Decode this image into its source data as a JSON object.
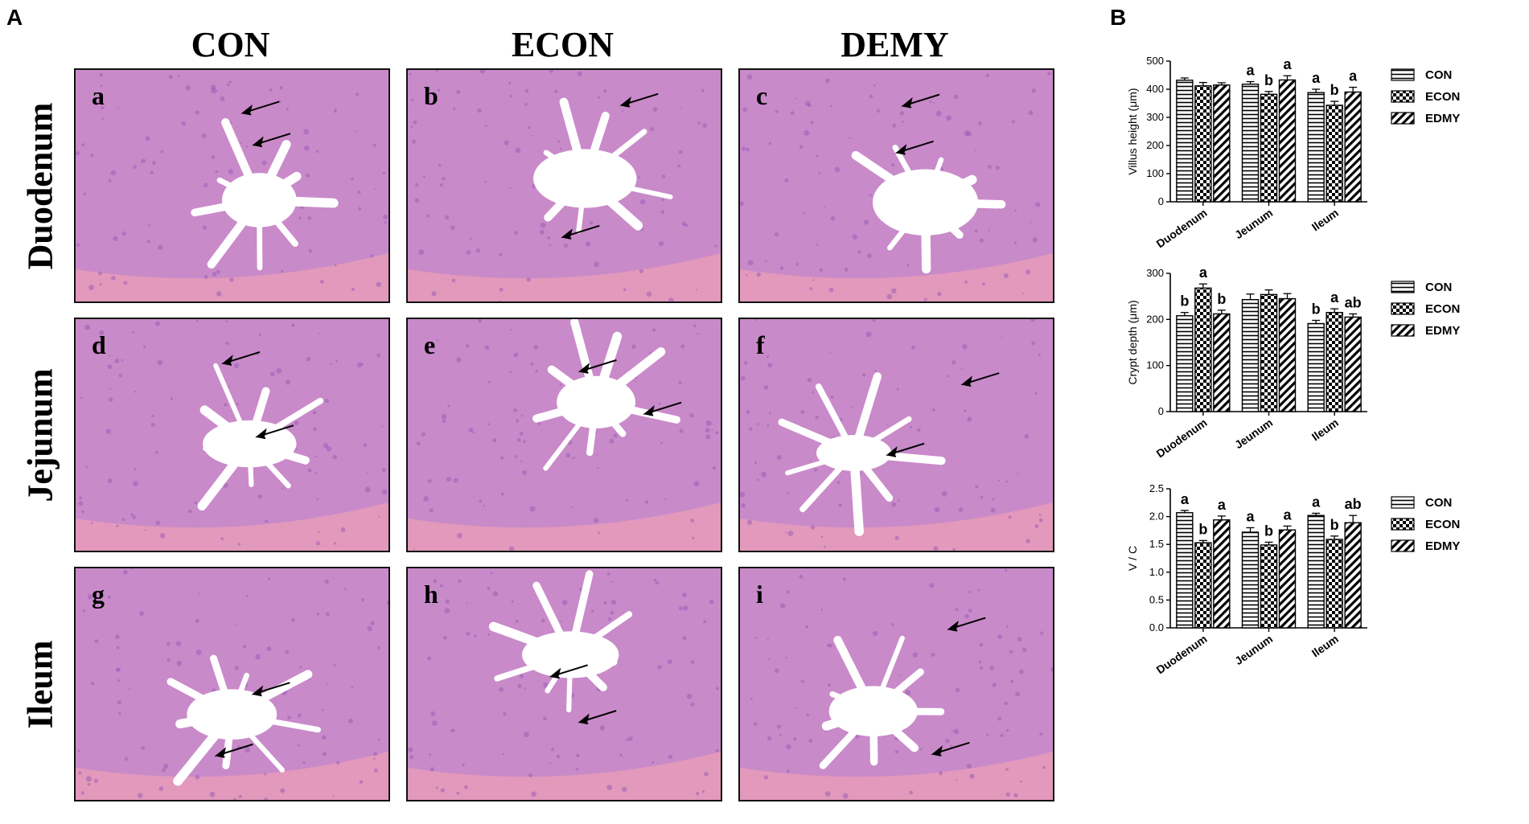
{
  "panels": {
    "a_label": "A",
    "b_label": "B"
  },
  "micrographs": {
    "columns": [
      "CON",
      "ECON",
      "DEMY"
    ],
    "rows": [
      "Duodenum",
      "Jejunum",
      "Ileum"
    ],
    "sublabels": [
      "a",
      "b",
      "c",
      "d",
      "e",
      "f",
      "g",
      "h",
      "i"
    ],
    "colors": {
      "tissue": "#c98ac9",
      "tissue_dark": "#9a5fb7",
      "muscle": "#e89cb8",
      "lumen": "#ffffff",
      "border": "#111111"
    }
  },
  "chart_data": [
    {
      "type": "bar",
      "categories": [
        "Duodenum",
        "Jeunum",
        "Ileum"
      ],
      "ylabel": "Villus height (μm)",
      "xlabel": "",
      "ylim": [
        0,
        500
      ],
      "yticks": [
        "0",
        "100",
        "200",
        "300",
        "400",
        "500"
      ],
      "series": [
        {
          "name": "CON",
          "values": [
            432,
            418,
            388
          ],
          "errors": [
            8,
            9,
            12
          ],
          "letters": [
            "",
            "a",
            "a"
          ]
        },
        {
          "name": "ECON",
          "values": [
            412,
            382,
            343
          ],
          "errors": [
            12,
            10,
            14
          ],
          "letters": [
            "",
            "b",
            "b"
          ]
        },
        {
          "name": "EDMY",
          "values": [
            415,
            433,
            390
          ],
          "errors": [
            8,
            15,
            17
          ],
          "letters": [
            "",
            "a",
            "a"
          ]
        }
      ],
      "legend_position": "right"
    },
    {
      "type": "bar",
      "categories": [
        "Duodenum",
        "Jeunum",
        "Ileum"
      ],
      "ylabel": "Crypt depth (μm)",
      "xlabel": "",
      "ylim": [
        0,
        300
      ],
      "yticks": [
        "0",
        "100",
        "200",
        "300"
      ],
      "series": [
        {
          "name": "CON",
          "values": [
            208,
            243,
            191
          ],
          "errors": [
            7,
            12,
            7
          ],
          "letters": [
            "b",
            "",
            "b"
          ]
        },
        {
          "name": "ECON",
          "values": [
            268,
            254,
            215
          ],
          "errors": [
            9,
            10,
            8
          ],
          "letters": [
            "a",
            "",
            "a"
          ]
        },
        {
          "name": "EDMY",
          "values": [
            212,
            245,
            205
          ],
          "errors": [
            8,
            11,
            7
          ],
          "letters": [
            "b",
            "",
            "ab"
          ]
        }
      ],
      "legend_position": "right"
    },
    {
      "type": "bar",
      "categories": [
        "Duodenum",
        "Jeunum",
        "Ileum"
      ],
      "ylabel": "V / C",
      "xlabel": "",
      "ylim": [
        0,
        2.5
      ],
      "yticks": [
        "0.0",
        "0.5",
        "1.0",
        "1.5",
        "2.0",
        "2.5"
      ],
      "series": [
        {
          "name": "CON",
          "values": [
            2.07,
            1.72,
            2.02
          ],
          "errors": [
            0.04,
            0.08,
            0.04
          ],
          "letters": [
            "a",
            "a",
            "a"
          ]
        },
        {
          "name": "ECON",
          "values": [
            1.53,
            1.49,
            1.59
          ],
          "errors": [
            0.04,
            0.05,
            0.06
          ],
          "letters": [
            "b",
            "b",
            "b"
          ]
        },
        {
          "name": "EDMY",
          "values": [
            1.94,
            1.76,
            1.89
          ],
          "errors": [
            0.07,
            0.07,
            0.13
          ],
          "letters": [
            "a",
            "a",
            "ab"
          ]
        }
      ],
      "legend_position": "right"
    }
  ]
}
